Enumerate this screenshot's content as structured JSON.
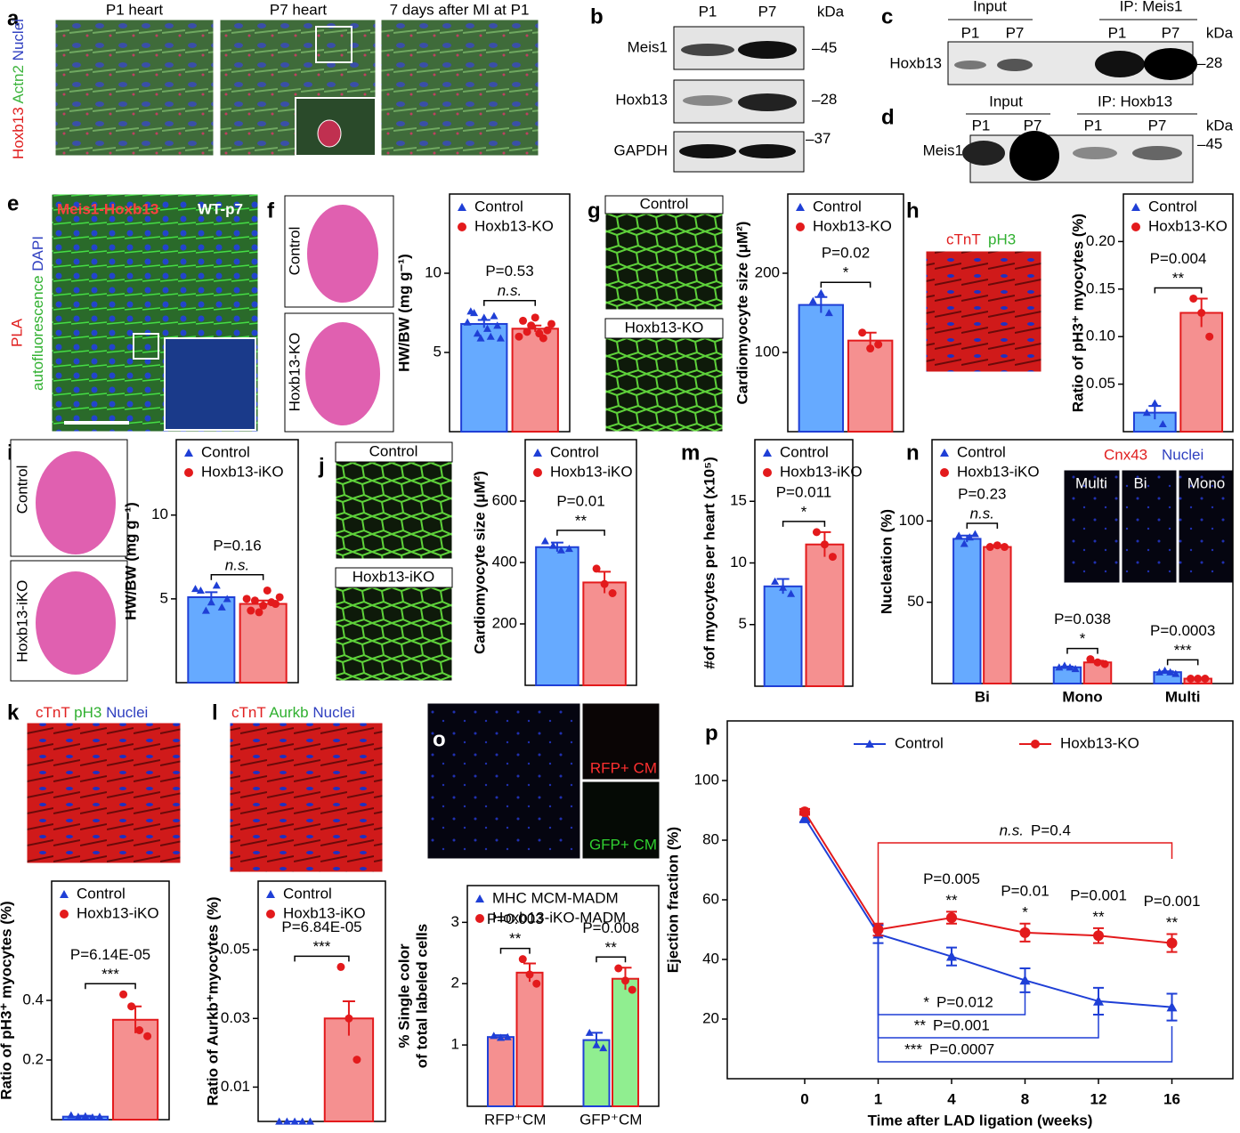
{
  "panels": {
    "a": {
      "letter": "a",
      "titles": [
        "P1 heart",
        "P7 heart",
        "7 days after MI at P1"
      ],
      "stain": [
        "Hoxb13",
        "Actn2",
        "Nuclei"
      ]
    },
    "b": {
      "letter": "b",
      "lanes": [
        "P1",
        "P7"
      ],
      "unit": "kDa",
      "rows": [
        "Meis1",
        "Hoxb13",
        "GAPDH"
      ],
      "markers": [
        "45",
        "28",
        "37"
      ]
    },
    "c": {
      "letter": "c",
      "groups": [
        "Input",
        "IP: Meis1"
      ],
      "lanes": [
        "P1",
        "P7",
        "P1",
        "P7"
      ],
      "unit": "kDa",
      "row": "Hoxb13",
      "marker": "28"
    },
    "d": {
      "letter": "d",
      "groups": [
        "Input",
        "IP: Hoxb13"
      ],
      "lanes": [
        "P1",
        "P7",
        "P1",
        "P7"
      ],
      "unit": "kDa",
      "row": "Meis1",
      "marker": "45"
    },
    "e": {
      "letter": "e",
      "probe": "Meis1-Hoxb13",
      "sample": "WT-p7",
      "stain": [
        "PLA",
        "autofluorescence",
        "DAPI"
      ]
    },
    "f": {
      "letter": "f",
      "images": [
        "Control",
        "Hoxb13-KO"
      ]
    },
    "g": {
      "letter": "g",
      "images": [
        "Control",
        "Hoxb13-KO"
      ]
    },
    "h": {
      "letter": "h",
      "stain": [
        "cTnT",
        "pH3"
      ]
    },
    "i": {
      "letter": "i",
      "images": [
        "Control",
        "Hoxb13-iKO"
      ]
    },
    "j": {
      "letter": "j",
      "images": [
        "Control",
        "Hoxb13-iKO"
      ]
    },
    "m": {
      "letter": "m"
    },
    "n": {
      "letter": "n",
      "stain": [
        "Cnx43",
        "Nuclei"
      ],
      "images": [
        "Multi",
        "Bi",
        "Mono"
      ]
    },
    "k": {
      "letter": "k",
      "stain": [
        "cTnT",
        "pH3",
        "Nuclei"
      ]
    },
    "l": {
      "letter": "l",
      "stain": [
        "cTnT",
        "Aurkb",
        "Nuclei"
      ]
    },
    "o": {
      "letter": "o",
      "images": [
        "RFP+ CM",
        "GFP+ CM"
      ]
    },
    "p": {
      "letter": "p"
    }
  },
  "chart_data": [
    {
      "type": "bar",
      "ylabel": "HW/BW (mg g⁻¹)",
      "categories": [
        null
      ],
      "ylim": [
        0,
        15
      ],
      "yticks": [
        5,
        10
      ],
      "series": [
        {
          "name": "Control",
          "color": "#1f3fd6",
          "fill": "#66aaff",
          "marker": "triangle",
          "values": [
            6.8
          ],
          "errors": [
            0.25
          ],
          "points": [
            [
              6.9,
              7.6,
              7.5,
              6.2,
              5.9,
              7.2,
              6.5,
              6.0,
              7.3,
              6.7,
              5.9
            ]
          ]
        },
        {
          "name": "Hoxb13-KO",
          "color": "#e31a1c",
          "fill": "#f59090",
          "marker": "circle",
          "values": [
            6.5
          ],
          "errors": [
            0.2
          ],
          "points": [
            [
              6.0,
              7.0,
              6.3,
              6.7,
              7.2,
              6.2,
              5.9,
              6.4,
              6.8
            ]
          ]
        }
      ],
      "tests": [
        {
          "p": "P=0.53",
          "sig": "n.s."
        }
      ]
    },
    {
      "type": "bar",
      "ylabel": "Cardiomyocyte size (μM²)",
      "categories": [
        null
      ],
      "ylim": [
        0,
        300
      ],
      "yticks": [
        100,
        200
      ],
      "series": [
        {
          "name": "Control",
          "color": "#1f3fd6",
          "fill": "#66aaff",
          "marker": "triangle",
          "values": [
            160
          ],
          "errors": [
            10
          ],
          "points": [
            [
              165,
              175,
              150
            ]
          ]
        },
        {
          "name": "Hoxb13-KO",
          "color": "#e31a1c",
          "fill": "#f59090",
          "marker": "circle",
          "values": [
            115
          ],
          "errors": [
            10
          ],
          "points": [
            [
              125,
              105,
              110
            ]
          ]
        }
      ],
      "tests": [
        {
          "p": "P=0.02",
          "sig": "*"
        }
      ]
    },
    {
      "type": "bar",
      "ylabel": "Ratio of pH3⁺ myocytes (%)",
      "categories": [
        null
      ],
      "ylim": [
        0,
        0.25
      ],
      "yticks": [
        0.05,
        {
          "value": 0.1,
          "label": "0.10"
        },
        0.15,
        {
          "value": 0.2,
          "label": "0.20"
        }
      ],
      "series": [
        {
          "name": "Control",
          "color": "#1f3fd6",
          "fill": "#66aaff",
          "marker": "triangle",
          "values": [
            0.02
          ],
          "errors": [
            0.007
          ],
          "points": [
            [
              0.02,
              0.03,
              0.008
            ]
          ]
        },
        {
          "name": "Hoxb13-KO",
          "color": "#e31a1c",
          "fill": "#f59090",
          "marker": "circle",
          "values": [
            0.125
          ],
          "errors": [
            0.015
          ],
          "points": [
            [
              0.14,
              0.125,
              0.1
            ]
          ]
        }
      ],
      "tests": [
        {
          "p": "P=0.004",
          "sig": "**"
        }
      ]
    },
    {
      "type": "bar",
      "ylabel": "HW/BW (mg g⁻¹)",
      "categories": [
        null
      ],
      "ylim": [
        0,
        14.5
      ],
      "yticks": [
        5,
        10
      ],
      "series": [
        {
          "name": "Control",
          "color": "#1f3fd6",
          "fill": "#66aaff",
          "marker": "triangle",
          "values": [
            5.1
          ],
          "errors": [
            0.3
          ],
          "points": [
            [
              5.6,
              5.5,
              4.3,
              4.8,
              5.8,
              4.5,
              5.0
            ]
          ]
        },
        {
          "name": "Hoxb13-iKO",
          "color": "#e31a1c",
          "fill": "#f59090",
          "marker": "circle",
          "values": [
            4.7
          ],
          "errors": [
            0.2
          ],
          "points": [
            [
              5.0,
              4.3,
              4.9,
              4.2,
              4.6,
              5.5,
              4.8,
              4.7,
              5.1
            ]
          ]
        }
      ],
      "tests": [
        {
          "p": "P=0.16",
          "sig": "n.s."
        }
      ]
    },
    {
      "type": "bar",
      "ylabel": "Cardiomyocyte size (μM²)",
      "categories": [
        null
      ],
      "ylim": [
        0,
        800
      ],
      "yticks": [
        200,
        400,
        600
      ],
      "series": [
        {
          "name": "Control",
          "color": "#1f3fd6",
          "fill": "#66aaff",
          "marker": "triangle",
          "values": [
            450
          ],
          "errors": [
            15
          ],
          "points": [
            [
              470,
              455,
              440,
              445
            ]
          ]
        },
        {
          "name": "Hoxb13-iKO",
          "color": "#e31a1c",
          "fill": "#f59090",
          "marker": "circle",
          "values": [
            335
          ],
          "errors": [
            35
          ],
          "points": [
            [
              380,
              330,
              300
            ]
          ]
        }
      ],
      "tests": [
        {
          "p": "P=0.01",
          "sig": "**"
        }
      ]
    },
    {
      "type": "bar",
      "ylabel": "#of myocytes per heart (x10⁵)",
      "categories": [
        null
      ],
      "ylim": [
        0,
        20
      ],
      "yticks": [
        5,
        10,
        15
      ],
      "series": [
        {
          "name": "Control",
          "color": "#1f3fd6",
          "fill": "#66aaff",
          "marker": "triangle",
          "values": [
            8.1
          ],
          "errors": [
            0.6
          ],
          "points": [
            [
              8.5,
              8.0,
              7.5
            ]
          ]
        },
        {
          "name": "Hoxb13-iKO",
          "color": "#e31a1c",
          "fill": "#f59090",
          "marker": "circle",
          "values": [
            11.5
          ],
          "errors": [
            1.0
          ],
          "points": [
            [
              12.5,
              11.5,
              10.5
            ]
          ]
        }
      ],
      "tests": [
        {
          "p": "P=0.011",
          "sig": "*"
        }
      ]
    },
    {
      "type": "bar",
      "ylabel": "Nucleation (%)",
      "categories": [
        "Bi",
        "Mono",
        "Multi"
      ],
      "category_label_weight": "bold",
      "ylim": [
        0,
        150
      ],
      "yticks": [
        50,
        100
      ],
      "series": [
        {
          "name": "Control",
          "color": "#1f3fd6",
          "fill": "#66aaff",
          "marker": "triangle",
          "values": [
            89,
            10,
            7
          ],
          "errors": [
            2,
            0.5,
            0.5
          ],
          "points": [
            [
              91,
              86,
              90,
              92
            ],
            [
              10,
              11,
              10,
              9
            ],
            [
              7,
              8,
              7,
              6
            ]
          ]
        },
        {
          "name": "Hoxb13-iKO",
          "color": "#e31a1c",
          "fill": "#f59090",
          "marker": "circle",
          "values": [
            84,
            13,
            3
          ],
          "errors": [
            1,
            1,
            0.3
          ],
          "points": [
            [
              84,
              85,
              84
            ],
            [
              15,
              13,
              12
            ],
            [
              3,
              3,
              3
            ]
          ]
        }
      ],
      "tests": [
        {
          "p": "P=0.23",
          "sig": "n.s."
        },
        {
          "p": "P=0.038",
          "sig": "*"
        },
        {
          "p": "P=0.0003",
          "sig": "***"
        }
      ]
    },
    {
      "type": "bar",
      "ylabel": "Ratio of pH3⁺ myocytes (%)",
      "categories": [
        null
      ],
      "ylim": [
        0,
        0.8
      ],
      "yticks": [
        0.2,
        0.4
      ],
      "series": [
        {
          "name": "Control",
          "color": "#1f3fd6",
          "fill": "#66aaff",
          "marker": "triangle",
          "values": [
            0.01
          ],
          "errors": [
            0.003
          ],
          "points": [
            [
              0.015,
              0.01,
              0.012,
              0.008,
              0.01
            ]
          ]
        },
        {
          "name": "Hoxb13-iKO",
          "color": "#e31a1c",
          "fill": "#f59090",
          "marker": "circle",
          "values": [
            0.335
          ],
          "errors": [
            0.045
          ],
          "points": [
            [
              0.42,
              0.38,
              0.3,
              0.28
            ]
          ]
        }
      ],
      "tests": [
        {
          "p": "P=6.14E-05",
          "sig": "***"
        }
      ]
    },
    {
      "type": "bar",
      "ylabel": "Ratio of Aurkb⁺myocytes (%)",
      "categories": [
        null
      ],
      "ylim": [
        0,
        0.07
      ],
      "yticks": [
        0.01,
        0.03,
        0.05
      ],
      "series": [
        {
          "name": "Control",
          "color": "#1f3fd6",
          "fill": "#66aaff",
          "marker": "triangle",
          "values": [
            0
          ],
          "errors": [
            0
          ],
          "points": [
            [
              0,
              0,
              0,
              0,
              0
            ]
          ]
        },
        {
          "name": "Hoxb13-iKO",
          "color": "#e31a1c",
          "fill": "#f59090",
          "marker": "circle",
          "values": [
            0.03
          ],
          "errors": [
            0.005
          ],
          "points": [
            [
              0.045,
              0.03,
              0.018
            ]
          ]
        }
      ],
      "tests": [
        {
          "p": "P=6.84E-05",
          "sig": "***"
        }
      ]
    },
    {
      "type": "bar",
      "ylabel": [
        "% Single color",
        "of total labeled cells"
      ],
      "categories": [
        "RFP⁺CM",
        "GFP⁺CM"
      ],
      "category_fills": [
        "#f59090",
        "#90ee90"
      ],
      "ylim": [
        0,
        3.6
      ],
      "yticks": [
        1,
        2,
        3
      ],
      "series": [
        {
          "name": "MHC MCM-MADM",
          "color": "#1f3fd6",
          "fill": "#66aaff",
          "marker": "triangle",
          "values": [
            1.13,
            1.08
          ],
          "errors": [
            0.03,
            0.12
          ],
          "points": [
            [
              1.15,
              1.12,
              1.13
            ],
            [
              1.2,
              1.0,
              0.95
            ]
          ]
        },
        {
          "name": "Hoxb13-iKO-MADM",
          "color": "#e31a1c",
          "fill": "#f59090",
          "marker": "circle",
          "values": [
            2.18,
            2.08
          ],
          "errors": [
            0.15,
            0.18
          ],
          "points": [
            [
              2.4,
              2.15,
              2.0
            ],
            [
              2.25,
              2.05,
              1.9
            ]
          ]
        }
      ],
      "tests": [
        {
          "p": "P=0.003",
          "sig": "**"
        },
        {
          "p": "P=0.008",
          "sig": "**"
        }
      ]
    },
    {
      "type": "line",
      "xlabel": "Time after LAD ligation (weeks)",
      "ylabel": "Ejection fraction (%)",
      "categories": [
        "0",
        "1",
        "4",
        "8",
        "12",
        "16"
      ],
      "ylim": [
        0,
        120
      ],
      "yticks": [
        20,
        40,
        60,
        80,
        100
      ],
      "series": [
        {
          "name": "Control",
          "color": "#1f3fd6",
          "marker": "triangle",
          "values": [
            87.5,
            48.5,
            41,
            33,
            26,
            24
          ],
          "errors": [
            1.5,
            3,
            3,
            4,
            4.5,
            4.5
          ]
        },
        {
          "name": "Hoxb13-KO",
          "color": "#e31a1c",
          "marker": "circle",
          "values": [
            89.5,
            50,
            54,
            49,
            48,
            45.5
          ],
          "errors": [
            1,
            2,
            2,
            3,
            2.5,
            3
          ]
        }
      ],
      "tests": [
        null,
        null,
        {
          "p": "P=0.005",
          "sig": "**"
        },
        {
          "p": "P=0.01",
          "sig": "*"
        },
        {
          "p": "P=0.001",
          "sig": "**"
        },
        {
          "p": "P=0.001",
          "sig": "**"
        }
      ],
      "brackets": [
        {
          "sig": "n.s.",
          "p": "P=0.4",
          "color": "#e31a1c"
        },
        {
          "sig": "*",
          "p": "P=0.012",
          "color": "#1f3fd6"
        },
        {
          "sig": "**",
          "p": "P=0.001",
          "color": "#1f3fd6"
        },
        {
          "sig": "***",
          "p": "P=0.0007",
          "color": "#1f3fd6"
        }
      ]
    }
  ]
}
